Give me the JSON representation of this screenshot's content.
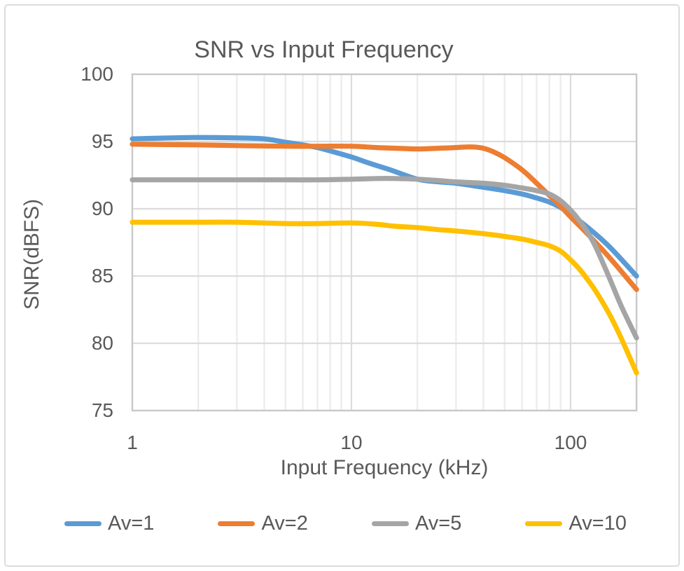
{
  "window": {
    "background": "#ffffff",
    "frame_border_color": "#dcdcdc",
    "text_color": "#595959"
  },
  "chart_data": {
    "type": "line",
    "title": "SNR vs Input Frequency",
    "xlabel": "Input Frequency (kHz)",
    "ylabel": "SNR(dBFS)",
    "x_scale": "log",
    "xlim": [
      1,
      200
    ],
    "ylim": [
      75,
      100
    ],
    "x_ticks": [
      1,
      10,
      100
    ],
    "x_tick_labels": [
      "1",
      "10",
      "100"
    ],
    "y_ticks": [
      100,
      95,
      90,
      85,
      80,
      75
    ],
    "y_tick_labels": [
      "100",
      "95",
      "90",
      "85",
      "80",
      "75"
    ],
    "grid": true,
    "minor_grid_x": [
      2,
      3,
      4,
      5,
      6,
      7,
      8,
      9,
      20,
      30,
      40,
      50,
      60,
      70,
      80,
      90
    ],
    "major_grid_x": [
      10,
      100
    ],
    "grid_y": [
      80,
      85,
      90,
      95
    ],
    "grid_minor_color": "#ebebeb",
    "grid_major_color": "#dcdcdc",
    "axis_border_color": "#c8c8c8",
    "legend_position": "bottom",
    "series": [
      {
        "name": "Av=1",
        "color": "#5B9BD5",
        "x": [
          1,
          1.5,
          2,
          3,
          4,
          5,
          6,
          7,
          8,
          10,
          12,
          15,
          20,
          25,
          30,
          40,
          50,
          60,
          70,
          80,
          90,
          100,
          120,
          150,
          200
        ],
        "y": [
          95.2,
          95.27,
          95.3,
          95.27,
          95.2,
          94.95,
          94.75,
          94.55,
          94.3,
          93.85,
          93.4,
          92.9,
          92.2,
          92.0,
          91.9,
          91.6,
          91.35,
          91.1,
          90.8,
          90.5,
          90.1,
          89.6,
          88.6,
          87.2,
          85.0
        ]
      },
      {
        "name": "Av=2",
        "color": "#ED7D31",
        "x": [
          1,
          2,
          3,
          5,
          7,
          10,
          13,
          16,
          20,
          25,
          30,
          35,
          40,
          45,
          50,
          60,
          70,
          80,
          90,
          100,
          120,
          150,
          200
        ],
        "y": [
          94.8,
          94.75,
          94.7,
          94.65,
          94.65,
          94.65,
          94.55,
          94.5,
          94.45,
          94.5,
          94.55,
          94.6,
          94.5,
          94.2,
          93.8,
          92.9,
          91.9,
          91.0,
          90.2,
          89.4,
          88.1,
          86.4,
          84.0
        ]
      },
      {
        "name": "Av=5",
        "color": "#A5A5A5",
        "x": [
          1,
          2,
          3,
          5,
          7,
          10,
          13,
          16,
          20,
          25,
          30,
          40,
          50,
          60,
          70,
          80,
          90,
          100,
          110,
          120,
          130,
          150,
          170,
          200
        ],
        "y": [
          92.15,
          92.15,
          92.15,
          92.15,
          92.15,
          92.2,
          92.25,
          92.25,
          92.2,
          92.1,
          92.0,
          91.9,
          91.75,
          91.55,
          91.35,
          91.1,
          90.6,
          89.9,
          89.1,
          88.2,
          87.2,
          84.9,
          82.8,
          80.4
        ]
      },
      {
        "name": "Av=10",
        "color": "#FFC000",
        "x": [
          1,
          2,
          3,
          5,
          7,
          10,
          13,
          16,
          20,
          25,
          30,
          40,
          50,
          60,
          70,
          80,
          90,
          100,
          110,
          120,
          130,
          150,
          170,
          200
        ],
        "y": [
          89.0,
          89.0,
          89.0,
          88.9,
          88.9,
          88.95,
          88.85,
          88.7,
          88.6,
          88.45,
          88.35,
          88.15,
          87.95,
          87.75,
          87.5,
          87.25,
          86.85,
          86.2,
          85.5,
          84.7,
          83.9,
          82.2,
          80.4,
          77.8
        ]
      }
    ]
  }
}
